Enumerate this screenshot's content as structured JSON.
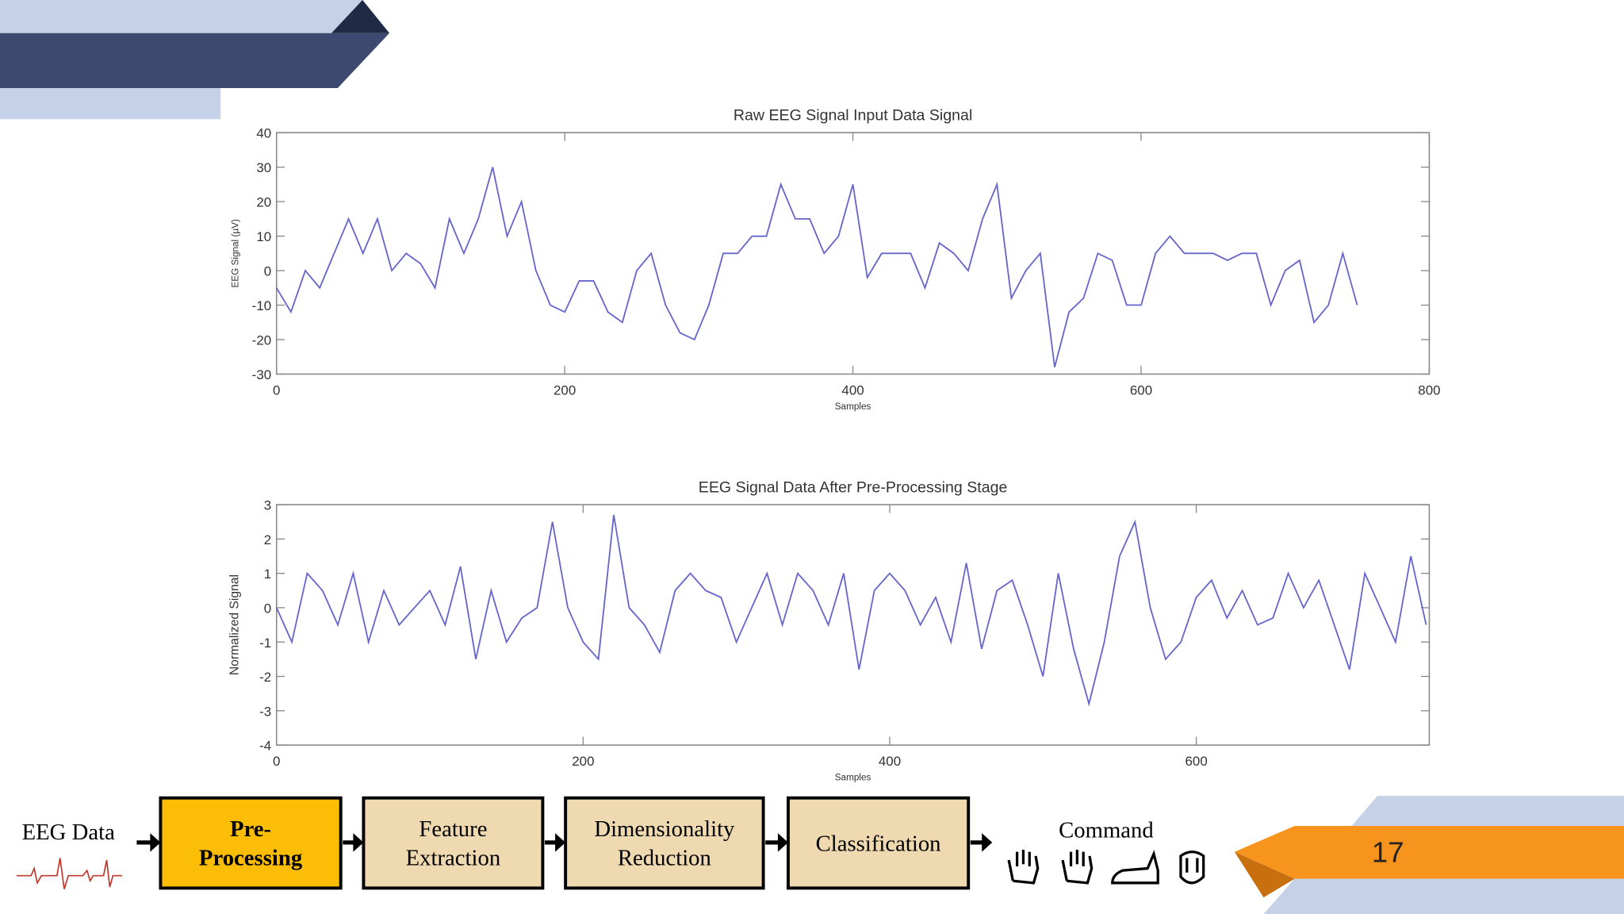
{
  "chart_data": [
    {
      "type": "line",
      "title": "Raw EEG Signal Input Data Signal",
      "xlabel": "Samples",
      "ylabel": "EEG Signal (µV)",
      "color": "#6666cc",
      "xlim": [
        0,
        800
      ],
      "xticks": [
        0,
        200,
        400,
        600,
        800
      ],
      "ylim": [
        -30,
        40
      ],
      "yticks": [
        -30,
        -20,
        -10,
        0,
        10,
        20,
        30,
        40
      ],
      "grid": false,
      "x": [
        0,
        10,
        20,
        30,
        40,
        50,
        60,
        70,
        80,
        90,
        100,
        110,
        120,
        130,
        140,
        150,
        160,
        170,
        180,
        190,
        200,
        210,
        220,
        230,
        240,
        250,
        260,
        270,
        280,
        290,
        300,
        310,
        320,
        330,
        340,
        350,
        360,
        370,
        380,
        390,
        400,
        410,
        420,
        430,
        440,
        450,
        460,
        470,
        480,
        490,
        500,
        510,
        520,
        530,
        540,
        550,
        560,
        570,
        580,
        590,
        600,
        610,
        620,
        630,
        640,
        650,
        660,
        670,
        680,
        690,
        700,
        710,
        720,
        730,
        740,
        750
      ],
      "values": [
        -5,
        -12,
        0,
        -5,
        5,
        15,
        5,
        15,
        0,
        5,
        2,
        -5,
        15,
        5,
        15,
        30,
        10,
        20,
        0,
        -10,
        -12,
        -3,
        -3,
        -12,
        -15,
        0,
        5,
        -10,
        -18,
        -20,
        -10,
        5,
        5,
        10,
        10,
        25,
        15,
        15,
        5,
        10,
        25,
        -2,
        5,
        5,
        5,
        -5,
        8,
        5,
        0,
        15,
        25,
        -8,
        0,
        5,
        -28,
        -12,
        -8,
        5,
        3,
        -10,
        -10,
        5,
        10,
        5,
        5,
        5,
        3,
        5,
        5,
        -10,
        0,
        3,
        -15,
        -10,
        5,
        -10
      ]
    },
    {
      "type": "line",
      "title": "EEG Signal Data After Pre-Processing Stage",
      "xlabel": "Samples",
      "ylabel": "Normalized Signal",
      "color": "#6666cc",
      "xlim": [
        0,
        752
      ],
      "xticks": [
        0,
        200,
        400,
        600
      ],
      "ylim": [
        -4,
        3
      ],
      "yticks": [
        -4,
        -3,
        -2,
        -1,
        0,
        1,
        2,
        3
      ],
      "grid": false,
      "x": [
        0,
        10,
        20,
        30,
        40,
        50,
        60,
        70,
        80,
        90,
        100,
        110,
        120,
        130,
        140,
        150,
        160,
        170,
        180,
        190,
        200,
        210,
        220,
        230,
        240,
        250,
        260,
        270,
        280,
        290,
        300,
        310,
        320,
        330,
        340,
        350,
        360,
        370,
        380,
        390,
        400,
        410,
        420,
        430,
        440,
        450,
        460,
        470,
        480,
        490,
        500,
        510,
        520,
        530,
        540,
        550,
        560,
        570,
        580,
        590,
        600,
        610,
        620,
        630,
        640,
        650,
        660,
        670,
        680,
        690,
        700,
        710,
        720,
        730,
        740,
        750
      ],
      "values": [
        0,
        -1,
        1,
        0.5,
        -0.5,
        1,
        -1,
        0.5,
        -0.5,
        0,
        0.5,
        -0.5,
        1.2,
        -1.5,
        0.5,
        -1,
        -0.3,
        0,
        2.5,
        0,
        -1,
        -1.5,
        2.7,
        0,
        -0.5,
        -1.3,
        0.5,
        1,
        0.5,
        0.3,
        -1,
        0,
        1,
        -0.5,
        1,
        0.5,
        -0.5,
        1,
        -1.8,
        0.5,
        1,
        0.5,
        -0.5,
        0.3,
        -1,
        1.3,
        -1.2,
        0.5,
        0.8,
        -0.5,
        -2,
        1,
        -1.2,
        -2.8,
        -1,
        1.5,
        2.5,
        0,
        -1.5,
        -1,
        0.3,
        0.8,
        -0.3,
        0.5,
        -0.5,
        -0.3,
        1,
        0,
        0.8,
        -0.5,
        -1.8,
        1,
        0,
        -1,
        1.5,
        -0.5
      ]
    }
  ],
  "pipeline": {
    "input": "EEG Data",
    "stages": [
      [
        "Pre-",
        "Processing"
      ],
      [
        "Feature",
        "Extraction"
      ],
      [
        "Dimensionality",
        "Reduction"
      ],
      [
        "Classification"
      ]
    ],
    "output": "Command"
  },
  "page_number": "17"
}
